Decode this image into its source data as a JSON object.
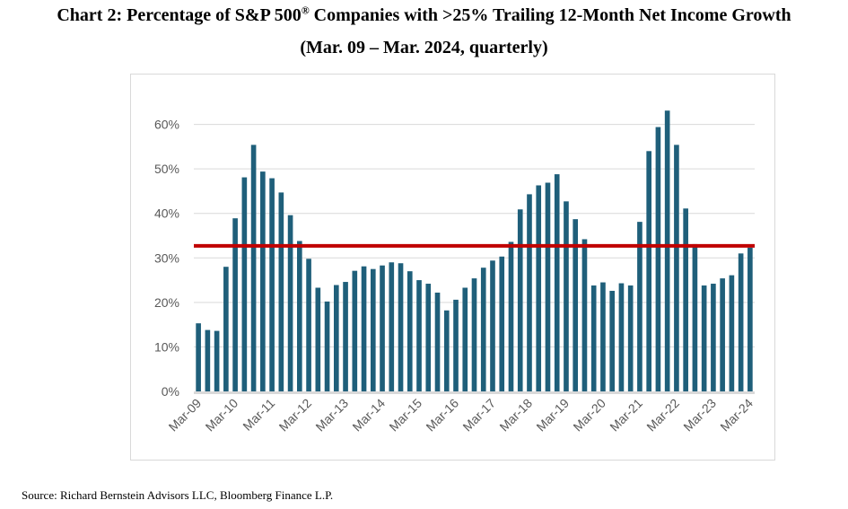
{
  "title": {
    "line1_prefix": "Chart 2:  Percentage of S&P 500",
    "line1_superscript": "®",
    "line1_suffix": " Companies with >25% Trailing 12-Month Net Income Growth",
    "line2": "(Mar. 09 – Mar. 2024, quarterly)"
  },
  "source": "Source: Richard Bernstein Advisors LLC, Bloomberg Finance L.P.",
  "colors": {
    "bar": "#1f5f7a",
    "reference_line": "#c00000",
    "gridline": "#d9d9d9",
    "axis_text": "#595959"
  },
  "chart_data": {
    "type": "bar",
    "title": "",
    "xlabel": "",
    "ylabel": "",
    "ylim": [
      0,
      70
    ],
    "y_ticks": [
      0,
      10,
      20,
      30,
      40,
      50,
      60
    ],
    "y_tick_labels": [
      "0%",
      "10%",
      "20%",
      "30%",
      "40%",
      "50%",
      "60%"
    ],
    "grid": true,
    "x_tick_labels": [
      {
        "index": 0,
        "label": "Mar-09"
      },
      {
        "index": 4,
        "label": "Mar-10"
      },
      {
        "index": 8,
        "label": "Mar-11"
      },
      {
        "index": 12,
        "label": "Mar-12"
      },
      {
        "index": 16,
        "label": "Mar-13"
      },
      {
        "index": 20,
        "label": "Mar-14"
      },
      {
        "index": 24,
        "label": "Mar-15"
      },
      {
        "index": 28,
        "label": "Mar-16"
      },
      {
        "index": 32,
        "label": "Mar-17"
      },
      {
        "index": 36,
        "label": "Mar-18"
      },
      {
        "index": 40,
        "label": "Mar-19"
      },
      {
        "index": 44,
        "label": "Mar-20"
      },
      {
        "index": 48,
        "label": "Mar-21"
      },
      {
        "index": 52,
        "label": "Mar-22"
      },
      {
        "index": 56,
        "label": "Mar-23"
      },
      {
        "index": 60,
        "label": "Mar-24"
      }
    ],
    "categories": [
      "Mar-09",
      "Jun-09",
      "Sep-09",
      "Dec-09",
      "Mar-10",
      "Jun-10",
      "Sep-10",
      "Dec-10",
      "Mar-11",
      "Jun-11",
      "Sep-11",
      "Dec-11",
      "Mar-12",
      "Jun-12",
      "Sep-12",
      "Dec-12",
      "Mar-13",
      "Jun-13",
      "Sep-13",
      "Dec-13",
      "Mar-14",
      "Jun-14",
      "Sep-14",
      "Dec-14",
      "Mar-15",
      "Jun-15",
      "Sep-15",
      "Dec-15",
      "Mar-16",
      "Jun-16",
      "Sep-16",
      "Dec-16",
      "Mar-17",
      "Jun-17",
      "Sep-17",
      "Dec-17",
      "Mar-18",
      "Jun-18",
      "Sep-18",
      "Dec-18",
      "Mar-19",
      "Jun-19",
      "Sep-19",
      "Dec-19",
      "Mar-20",
      "Jun-20",
      "Sep-20",
      "Dec-20",
      "Mar-21",
      "Jun-21",
      "Sep-21",
      "Dec-21",
      "Mar-22",
      "Jun-22",
      "Sep-22",
      "Dec-22",
      "Mar-23",
      "Jun-23",
      "Sep-23",
      "Dec-23",
      "Mar-24"
    ],
    "series": [
      {
        "values": [
          15.3,
          13.8,
          13.6,
          28.0,
          38.9,
          48.1,
          55.4,
          49.4,
          47.9,
          44.7,
          39.6,
          33.8,
          29.8,
          23.3,
          20.2,
          23.9,
          24.6,
          27.1,
          28.1,
          27.5,
          28.3,
          29.0,
          28.8,
          27.0,
          25.0,
          24.2,
          22.2,
          18.2,
          20.6,
          23.3,
          25.4,
          27.8,
          29.4,
          30.3,
          33.6,
          40.9,
          44.3,
          46.3,
          46.9,
          48.8,
          42.7,
          38.7,
          34.2,
          23.8,
          24.5,
          22.6,
          24.3,
          23.8,
          38.1,
          54.0,
          59.4,
          63.1,
          55.4,
          41.1,
          33.1,
          23.8,
          24.2,
          25.4,
          26.1,
          31.0,
          32.3
        ]
      }
    ],
    "reference_line": {
      "value": 32.7
    }
  }
}
